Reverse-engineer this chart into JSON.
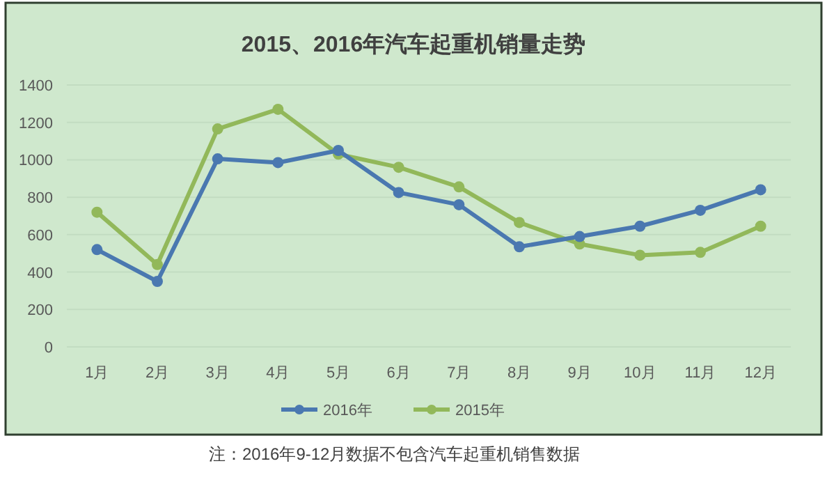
{
  "chart_data": {
    "type": "line",
    "title": "2015、2016年汽车起重机销量走势",
    "categories": [
      "1月",
      "2月",
      "3月",
      "4月",
      "5月",
      "6月",
      "7月",
      "8月",
      "9月",
      "10月",
      "11月",
      "12月"
    ],
    "series": [
      {
        "name": "2016年",
        "color": "#4a78b0",
        "values": [
          520,
          350,
          1005,
          985,
          1050,
          825,
          760,
          535,
          590,
          645,
          730,
          840
        ]
      },
      {
        "name": "2015年",
        "color": "#92b85a",
        "values": [
          720,
          440,
          1165,
          1270,
          1030,
          960,
          855,
          665,
          550,
          490,
          505,
          645
        ]
      }
    ],
    "ylim": [
      0,
      1400
    ],
    "yticks": [
      0,
      200,
      400,
      600,
      800,
      1000,
      1200,
      1400
    ],
    "grid": "y",
    "legend": "bottom",
    "marker": "circle",
    "line_style": "solid",
    "annotations": [
      "注：2016年9-12月数据不包含汽车起重机销售数据"
    ]
  }
}
